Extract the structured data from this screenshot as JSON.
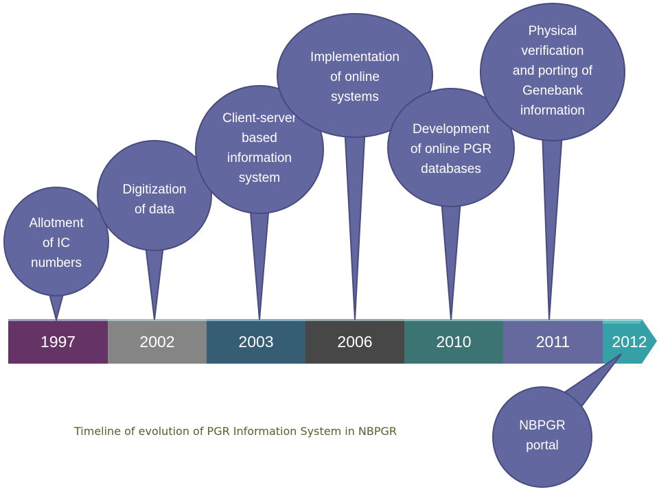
{
  "caption": "Timeline of evolution of PGR Information System in NBPGR",
  "colors": {
    "bubble_fill": "#6367a0",
    "bubble_stroke": "#474b7e",
    "caption": "#4f6228",
    "segments": [
      "#663366",
      "#858585",
      "#355e75",
      "#474747",
      "#3c7474",
      "#65699d",
      "#35a0a6"
    ]
  },
  "timeline": {
    "years": [
      "1997",
      "2002",
      "2003",
      "2006",
      "2010",
      "2011",
      "2012"
    ]
  },
  "events": [
    {
      "year": "1997",
      "lines": [
        "Allotment",
        "of IC",
        "numbers"
      ]
    },
    {
      "year": "2002",
      "lines": [
        "Digitization",
        "of data"
      ]
    },
    {
      "year": "2003",
      "lines": [
        "Client-server",
        "based",
        "information",
        "system"
      ]
    },
    {
      "year": "2006",
      "lines": [
        "Implementation",
        "of online",
        "systems"
      ]
    },
    {
      "year": "2010",
      "lines": [
        "Development",
        "of online PGR",
        "databases"
      ]
    },
    {
      "year": "2011",
      "lines": [
        "Physical",
        "verification",
        "and porting of",
        "Genebank",
        "information"
      ]
    },
    {
      "year": "2012",
      "lines": [
        "NBPGR",
        "portal"
      ]
    }
  ]
}
